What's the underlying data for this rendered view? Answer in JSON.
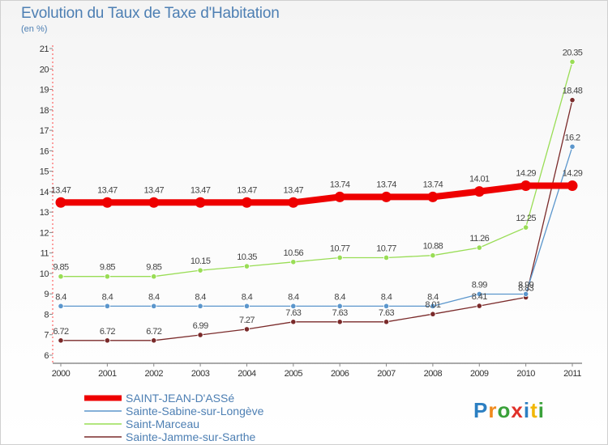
{
  "chart_data": {
    "type": "line",
    "title": "Evolution du Taux de Taxe d'Habitation",
    "subtitle": "(en %)",
    "x": [
      "2000",
      "2001",
      "2002",
      "2003",
      "2004",
      "2005",
      "2006",
      "2007",
      "2008",
      "2009",
      "2010",
      "2011"
    ],
    "ylim": [
      6,
      21
    ],
    "yticks": [
      6,
      7,
      8,
      9,
      10,
      11,
      12,
      13,
      14,
      15,
      16,
      17,
      18,
      19,
      20,
      21
    ],
    "grid": false,
    "legend_position": "bottom-left",
    "series": [
      {
        "name": "SAINT-JEAN-D'ASSé",
        "color": "#ee0000",
        "values": [
          13.47,
          13.47,
          13.47,
          13.47,
          13.47,
          13.47,
          13.74,
          13.74,
          13.74,
          14.01,
          14.29,
          14.29
        ],
        "labels": [
          "13.47",
          "13.47",
          "13.47",
          "13.47",
          "13.47",
          "13.47",
          "13.74",
          "13.74",
          "13.74",
          "14.01",
          "14.29",
          "14.29"
        ]
      },
      {
        "name": "Sainte-Sabine-sur-Longève",
        "color": "#5b96cc",
        "values": [
          8.4,
          8.4,
          8.4,
          8.4,
          8.4,
          8.4,
          8.4,
          8.4,
          8.4,
          8.99,
          8.99,
          16.2
        ],
        "labels": [
          "8.4",
          "8.4",
          "8.4",
          "8.4",
          "8.4",
          "8.4",
          "8.4",
          "8.4",
          "8.4",
          "8.99",
          "8.99",
          "16.2"
        ]
      },
      {
        "name": "Saint-Marceau",
        "color": "#99dd55",
        "values": [
          9.85,
          9.85,
          9.85,
          10.15,
          10.35,
          10.56,
          10.77,
          10.77,
          10.88,
          11.26,
          12.25,
          20.35
        ],
        "labels": [
          "9.85",
          "9.85",
          "9.85",
          "10.15",
          "10.35",
          "10.56",
          "10.77",
          "10.77",
          "10.88",
          "11.26",
          "12.25",
          "20.35"
        ]
      },
      {
        "name": "Sainte-Jamme-sur-Sarthe",
        "color": "#7a2a2a",
        "values": [
          6.72,
          6.72,
          6.72,
          6.99,
          7.27,
          7.63,
          7.63,
          7.63,
          8.01,
          8.41,
          8.83,
          18.48
        ],
        "labels": [
          "6.72",
          "6.72",
          "6.72",
          "6.99",
          "7.27",
          "7.63",
          "7.63",
          "7.63",
          "8.01",
          "8.41",
          "8.83",
          "18.48"
        ]
      }
    ]
  },
  "logo": {
    "text": "Proxiti"
  }
}
